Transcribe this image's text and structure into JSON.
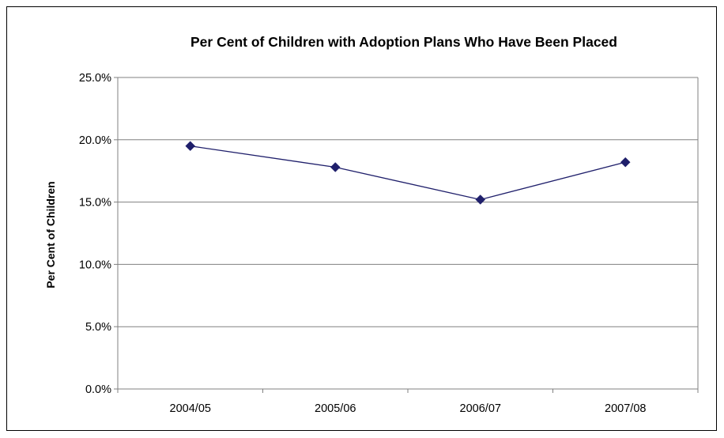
{
  "chart_data": {
    "type": "line",
    "title": "Per Cent of Children with Adoption Plans Who Have Been Placed",
    "xlabel": "",
    "ylabel": "Per Cent of Children",
    "categories": [
      "2004/05",
      "2005/06",
      "2006/07",
      "2007/08"
    ],
    "series": [
      {
        "values": [
          19.5,
          17.8,
          15.2,
          18.2
        ],
        "color": "#1f1f6b",
        "marker": "diamond"
      }
    ],
    "ylim": [
      0,
      25
    ],
    "yticks": [
      0,
      5,
      10,
      15,
      20,
      25
    ],
    "ytick_labels": [
      "0.0%",
      "5.0%",
      "10.0%",
      "15.0%",
      "20.0%",
      "25.0%"
    ],
    "grid": "horizontal",
    "legend": "none"
  }
}
